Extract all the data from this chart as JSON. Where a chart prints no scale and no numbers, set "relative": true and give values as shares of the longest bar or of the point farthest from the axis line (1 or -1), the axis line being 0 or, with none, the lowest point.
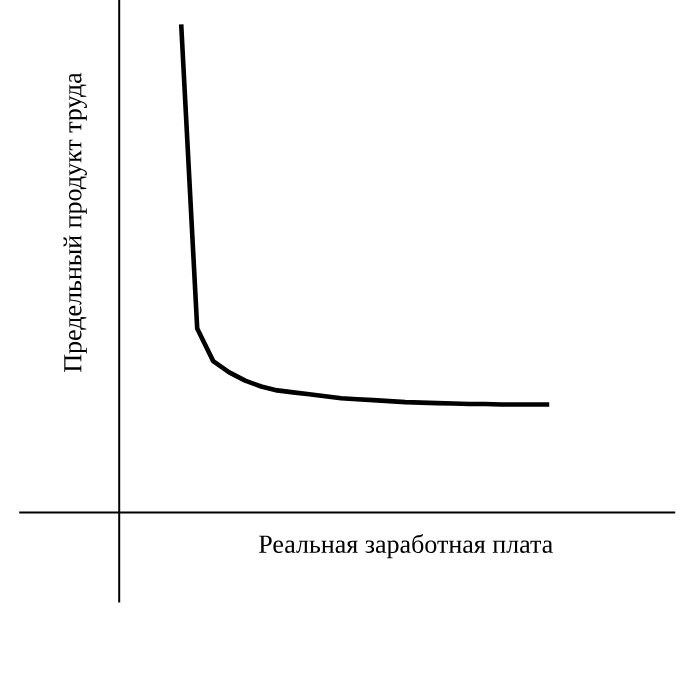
{
  "chart_data": {
    "type": "line",
    "relative": true,
    "xlabel": "Реальная заработная плата",
    "ylabel": "Предельный продукт труда",
    "categories": [
      null,
      null,
      null,
      null,
      null,
      null,
      null,
      null,
      null,
      null,
      null,
      null,
      null,
      null,
      null,
      null,
      null,
      null,
      null,
      null,
      null,
      null,
      null,
      null
    ],
    "series": [
      {
        "color": "#000000",
        "values": [
          1.0,
          0.377,
          0.31,
          0.287,
          0.27,
          0.258,
          0.25,
          0.246,
          0.242,
          0.238,
          0.234,
          0.232,
          0.23,
          0.228,
          0.226,
          0.225,
          0.224,
          0.223,
          0.222,
          0.222,
          0.221,
          0.221,
          0.221,
          0.221
        ]
      }
    ],
    "marker": "none",
    "line_style": "solid"
  }
}
